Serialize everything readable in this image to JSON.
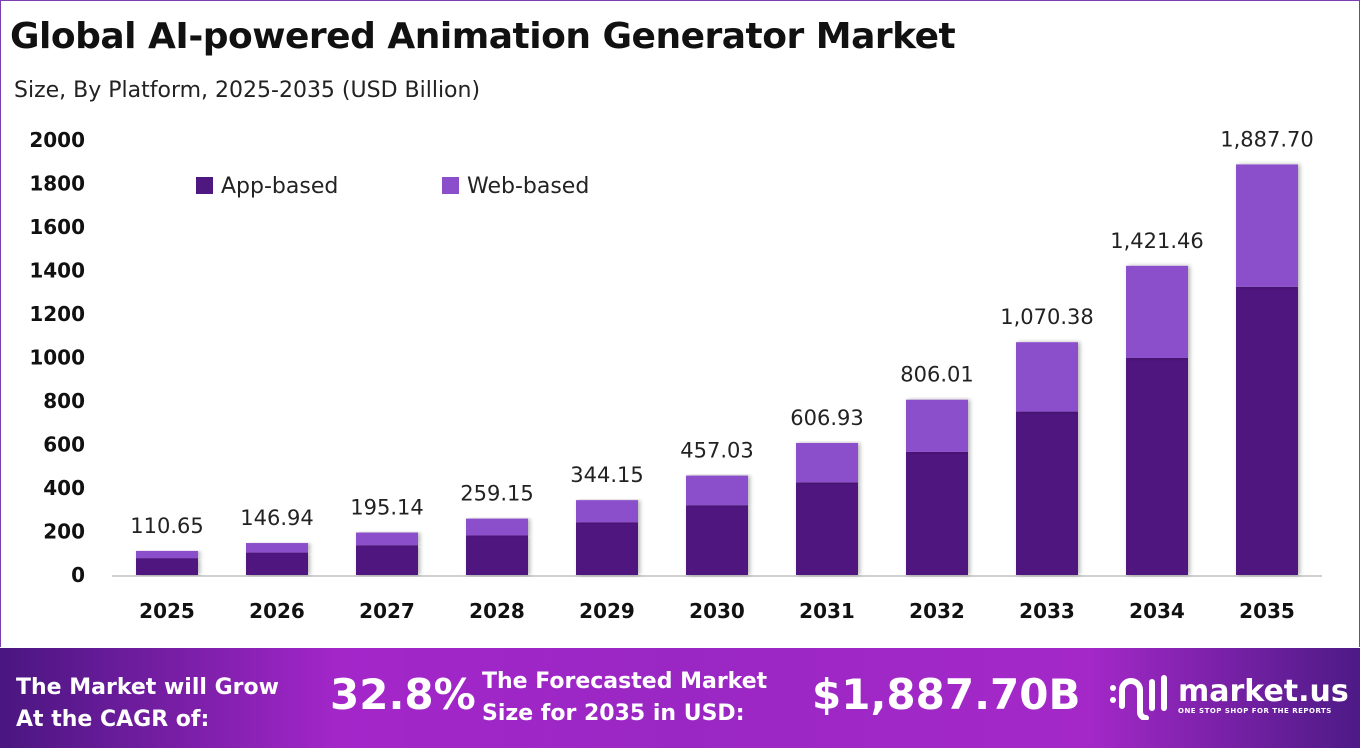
{
  "chart_data": {
    "type": "bar",
    "stacked": true,
    "title": "Global AI-powered Animation Generator Market",
    "subtitle": "Size, By Platform, 2025-2035 (USD Billion)",
    "xlabel": "",
    "ylabel": "",
    "ylim": [
      0,
      2000
    ],
    "yticks": [
      0,
      200,
      400,
      600,
      800,
      1000,
      1200,
      1400,
      1600,
      1800,
      2000
    ],
    "grid": false,
    "legend_position": "top-left",
    "categories": [
      "2025",
      "2026",
      "2027",
      "2028",
      "2029",
      "2030",
      "2031",
      "2032",
      "2033",
      "2034",
      "2035"
    ],
    "series": [
      {
        "name": "App-based",
        "color": "#4f1780",
        "values": [
          77.68,
          103.15,
          136.99,
          181.92,
          241.59,
          320.84,
          426.07,
          565.82,
          751.41,
          997.87,
          1325.17
        ]
      },
      {
        "name": "Web-based",
        "color": "#8c4fcc",
        "values": [
          32.97,
          43.79,
          58.15,
          77.23,
          102.56,
          136.19,
          180.86,
          240.19,
          318.97,
          423.59,
          562.53
        ]
      }
    ],
    "totals": [
      110.65,
      146.94,
      195.14,
      259.15,
      344.15,
      457.03,
      606.93,
      806.01,
      1070.38,
      1421.46,
      1887.7
    ],
    "total_labels": [
      "110.65",
      "146.94",
      "195.14",
      "259.15",
      "344.15",
      "457.03",
      "606.93",
      "806.01",
      "1,070.38",
      "1,421.46",
      "1,887.70"
    ]
  },
  "footer": {
    "cagr_label_line1": "The Market will Grow",
    "cagr_label_line2": "At the CAGR of:",
    "cagr_value": "32.8%",
    "forecast_label_line1": "The Forecasted Market",
    "forecast_label_line2": "Size for 2035 in USD:",
    "forecast_value": "$1,887.70B",
    "brand": "market.us",
    "brand_tagline": "ONE STOP SHOP FOR THE REPORTS"
  }
}
